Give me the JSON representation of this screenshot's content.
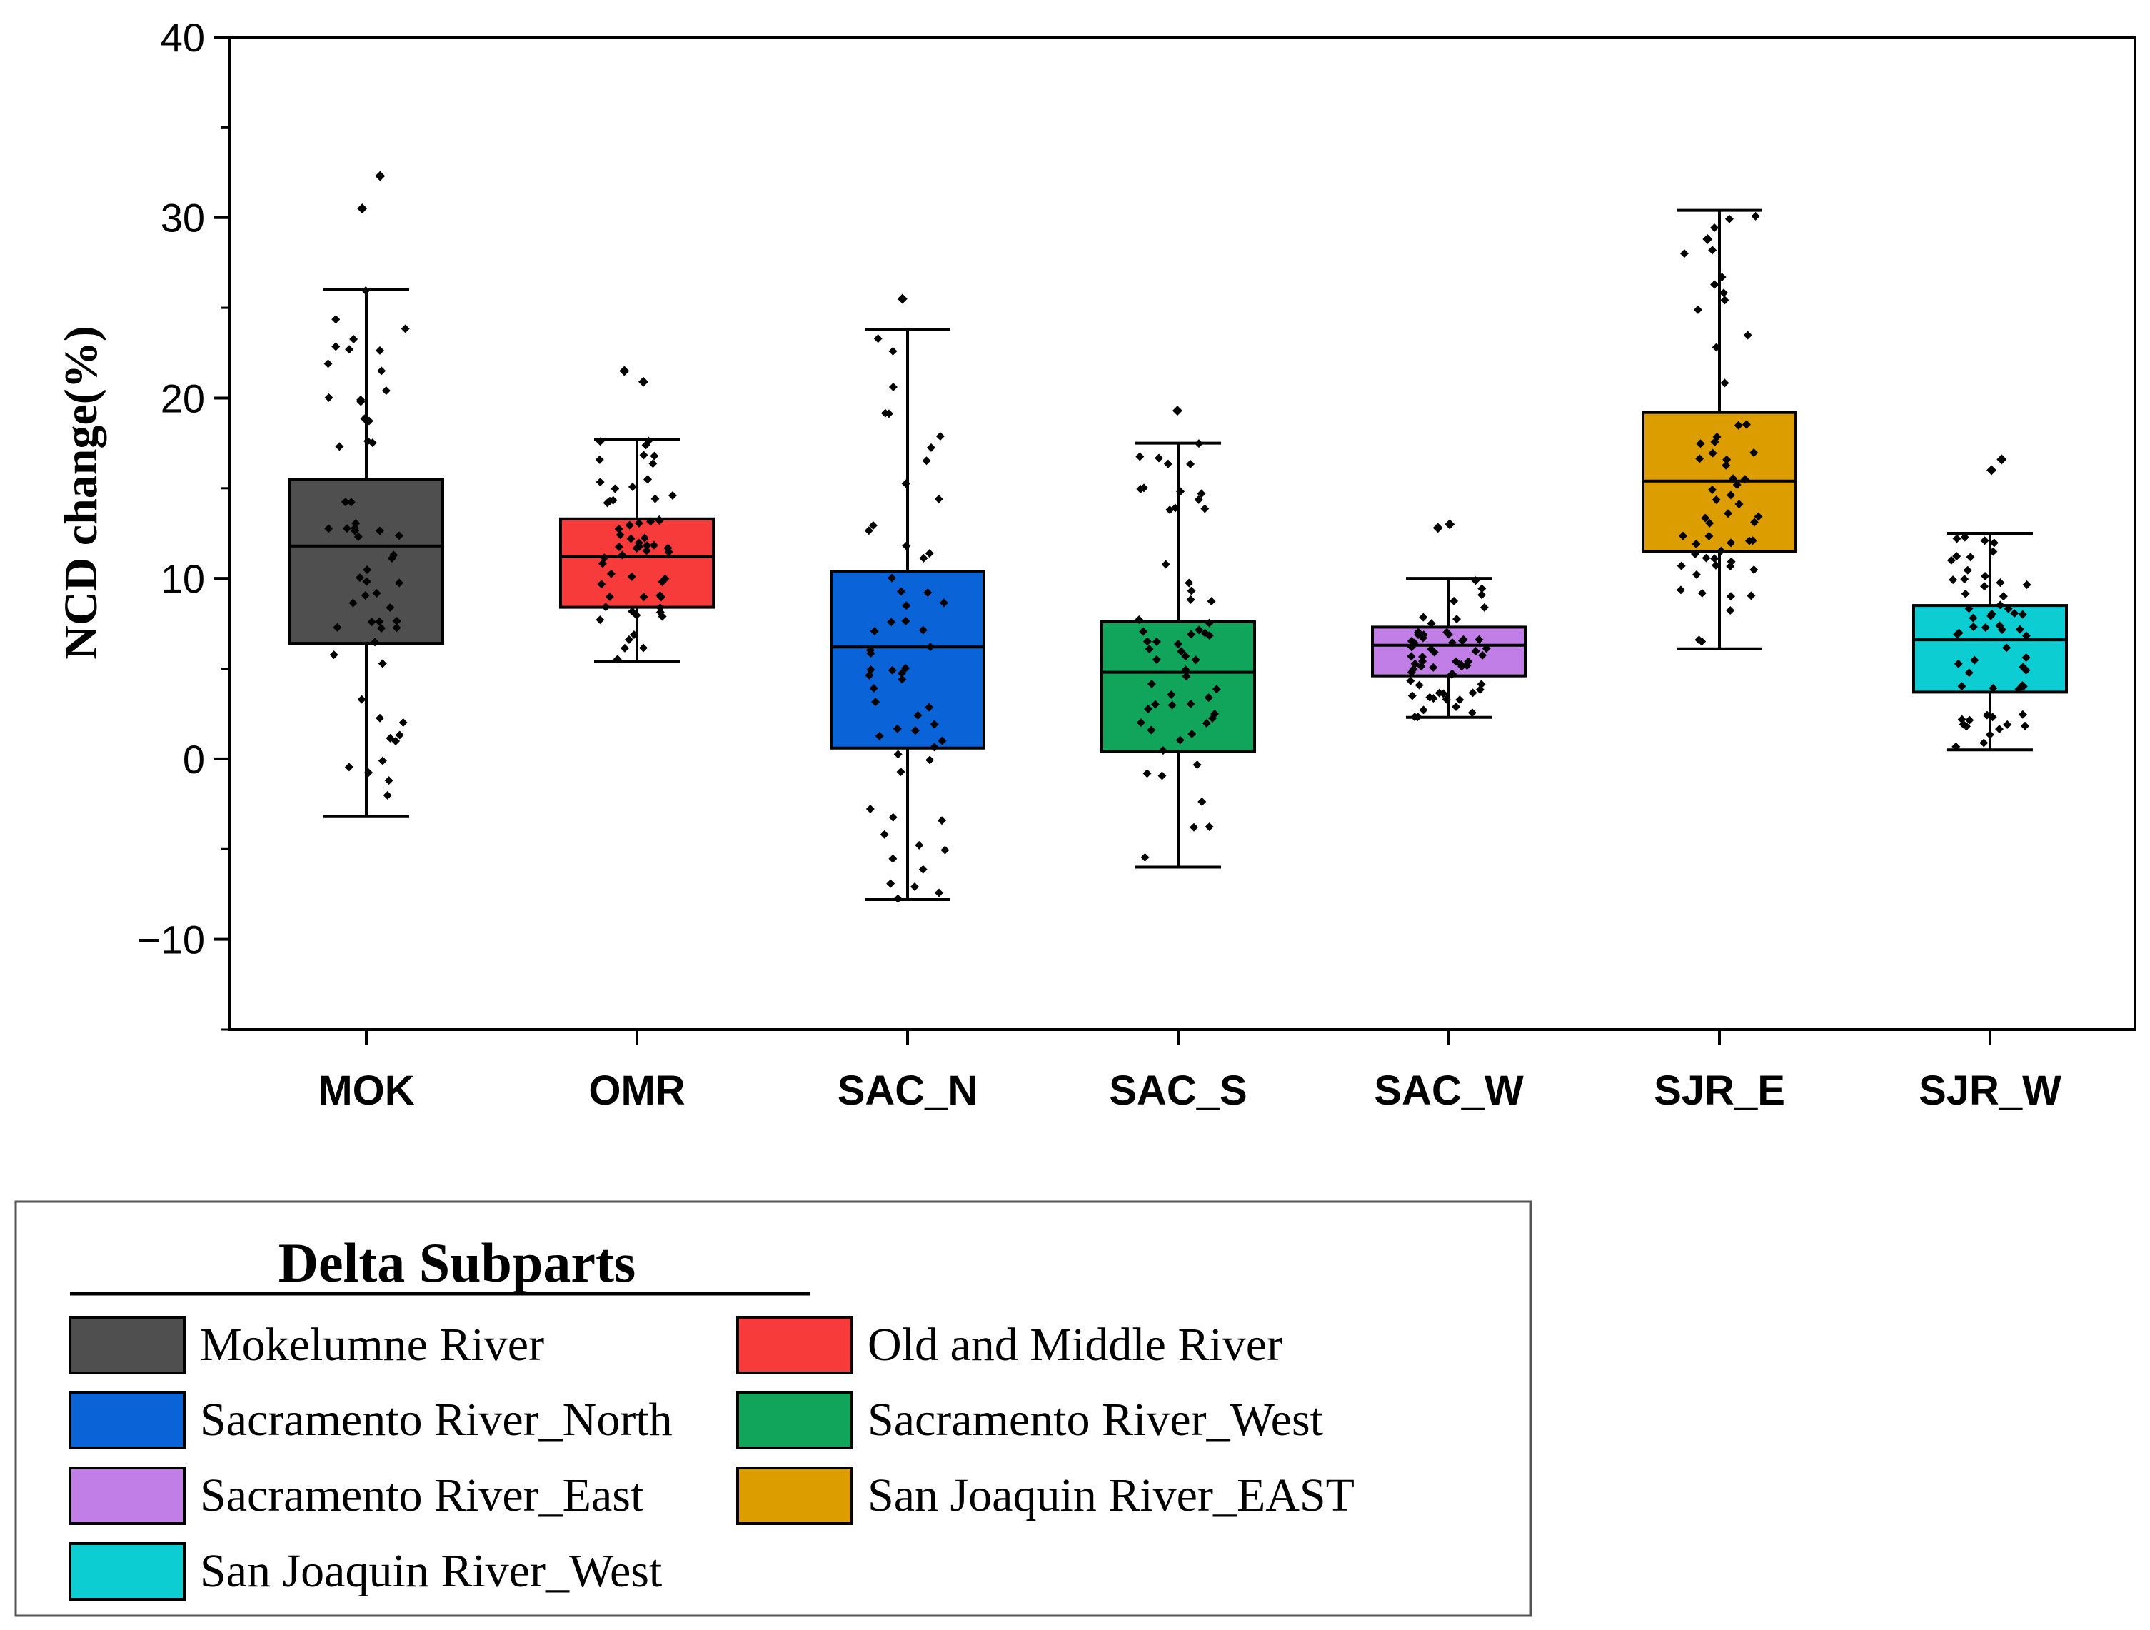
{
  "chart_data": {
    "type": "box",
    "ylabel": "NCD change(%)",
    "xlabel": "",
    "ylim": [
      -15,
      40
    ],
    "yticks": [
      -10,
      0,
      10,
      20,
      30,
      40
    ],
    "categories": [
      "MOK",
      "OMR",
      "SAC_N",
      "SAC_S",
      "SAC_W",
      "SJR_E",
      "SJR_W"
    ],
    "boxes": [
      {
        "category": "MOK",
        "min": -3.2,
        "q1": 6.4,
        "median": 11.8,
        "q3": 15.5,
        "max": 26.0,
        "color": "#4f4f4f",
        "outliers": [
          30.5,
          32.3
        ]
      },
      {
        "category": "OMR",
        "min": 5.4,
        "q1": 8.4,
        "median": 11.2,
        "q3": 13.3,
        "max": 17.7,
        "color": "#f73b3b",
        "outliers": [
          20.9,
          21.5
        ]
      },
      {
        "category": "SAC_N",
        "min": -7.8,
        "q1": 0.6,
        "median": 6.2,
        "q3": 10.4,
        "max": 23.8,
        "color": "#0b63d8",
        "outliers": [
          25.5
        ]
      },
      {
        "category": "SAC_S",
        "min": -6.0,
        "q1": 0.4,
        "median": 4.8,
        "q3": 7.6,
        "max": 17.5,
        "color": "#10a55b",
        "outliers": [
          19.3
        ]
      },
      {
        "category": "SAC_W",
        "min": 2.3,
        "q1": 4.6,
        "median": 6.3,
        "q3": 7.3,
        "max": 10.0,
        "color": "#c07ee6",
        "outliers": [
          12.8,
          13.0
        ]
      },
      {
        "category": "SJR_E",
        "min": 6.1,
        "q1": 11.5,
        "median": 15.4,
        "q3": 19.2,
        "max": 30.4,
        "color": "#dc9d00",
        "outliers": [
          28.8
        ]
      },
      {
        "category": "SJR_W",
        "min": 0.5,
        "q1": 3.7,
        "median": 6.6,
        "q3": 8.5,
        "max": 12.5,
        "color": "#0ccdd1",
        "outliers": [
          16.0,
          16.6
        ]
      }
    ],
    "grid": false
  },
  "legend": {
    "title": "Delta Subparts",
    "items": [
      {
        "label": "Mokelumne River",
        "color": "#4f4f4f"
      },
      {
        "label": "Old and Middle River",
        "color": "#f73b3b"
      },
      {
        "label": "Sacramento River_North",
        "color": "#0b63d8"
      },
      {
        "label": " Sacramento River_West",
        "color": "#10a55b"
      },
      {
        "label": "Sacramento River_East",
        "color": "#c07ee6"
      },
      {
        "label": "San Joaquin River_EAST",
        "color": "#dc9d00"
      },
      {
        "label": "San Joaquin River_West",
        "color": "#0ccdd1"
      }
    ]
  }
}
